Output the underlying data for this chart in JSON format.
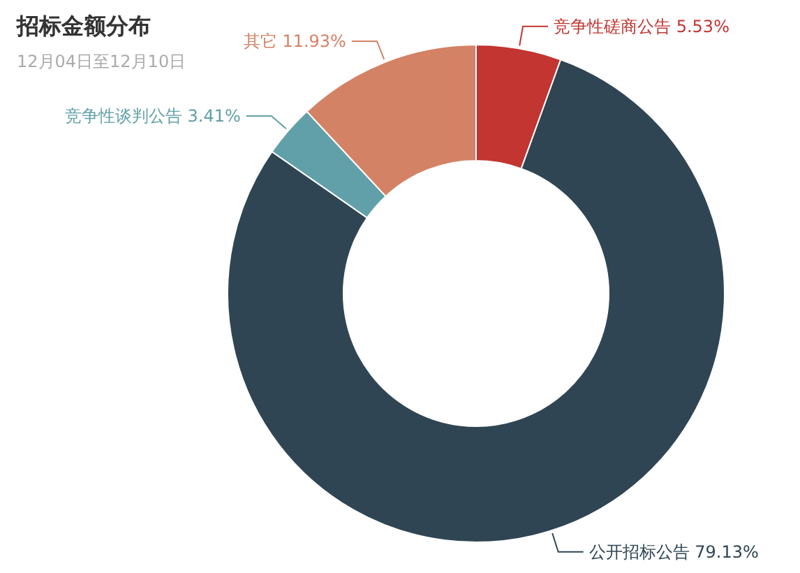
{
  "chart_data": {
    "type": "donut",
    "title": "招标金额分布",
    "subtitle": "12月04日至12月10日",
    "categories": [
      "竞争性磋商公告",
      "公开招标公告",
      "竞争性谈判公告",
      "其它"
    ],
    "values": [
      5.53,
      79.13,
      3.41,
      11.93
    ],
    "value_labels": [
      "5.53%",
      "79.13%",
      "3.41%",
      "11.93%"
    ],
    "colors": [
      "#c23531",
      "#2f4554",
      "#61a0a8",
      "#d48265"
    ]
  }
}
